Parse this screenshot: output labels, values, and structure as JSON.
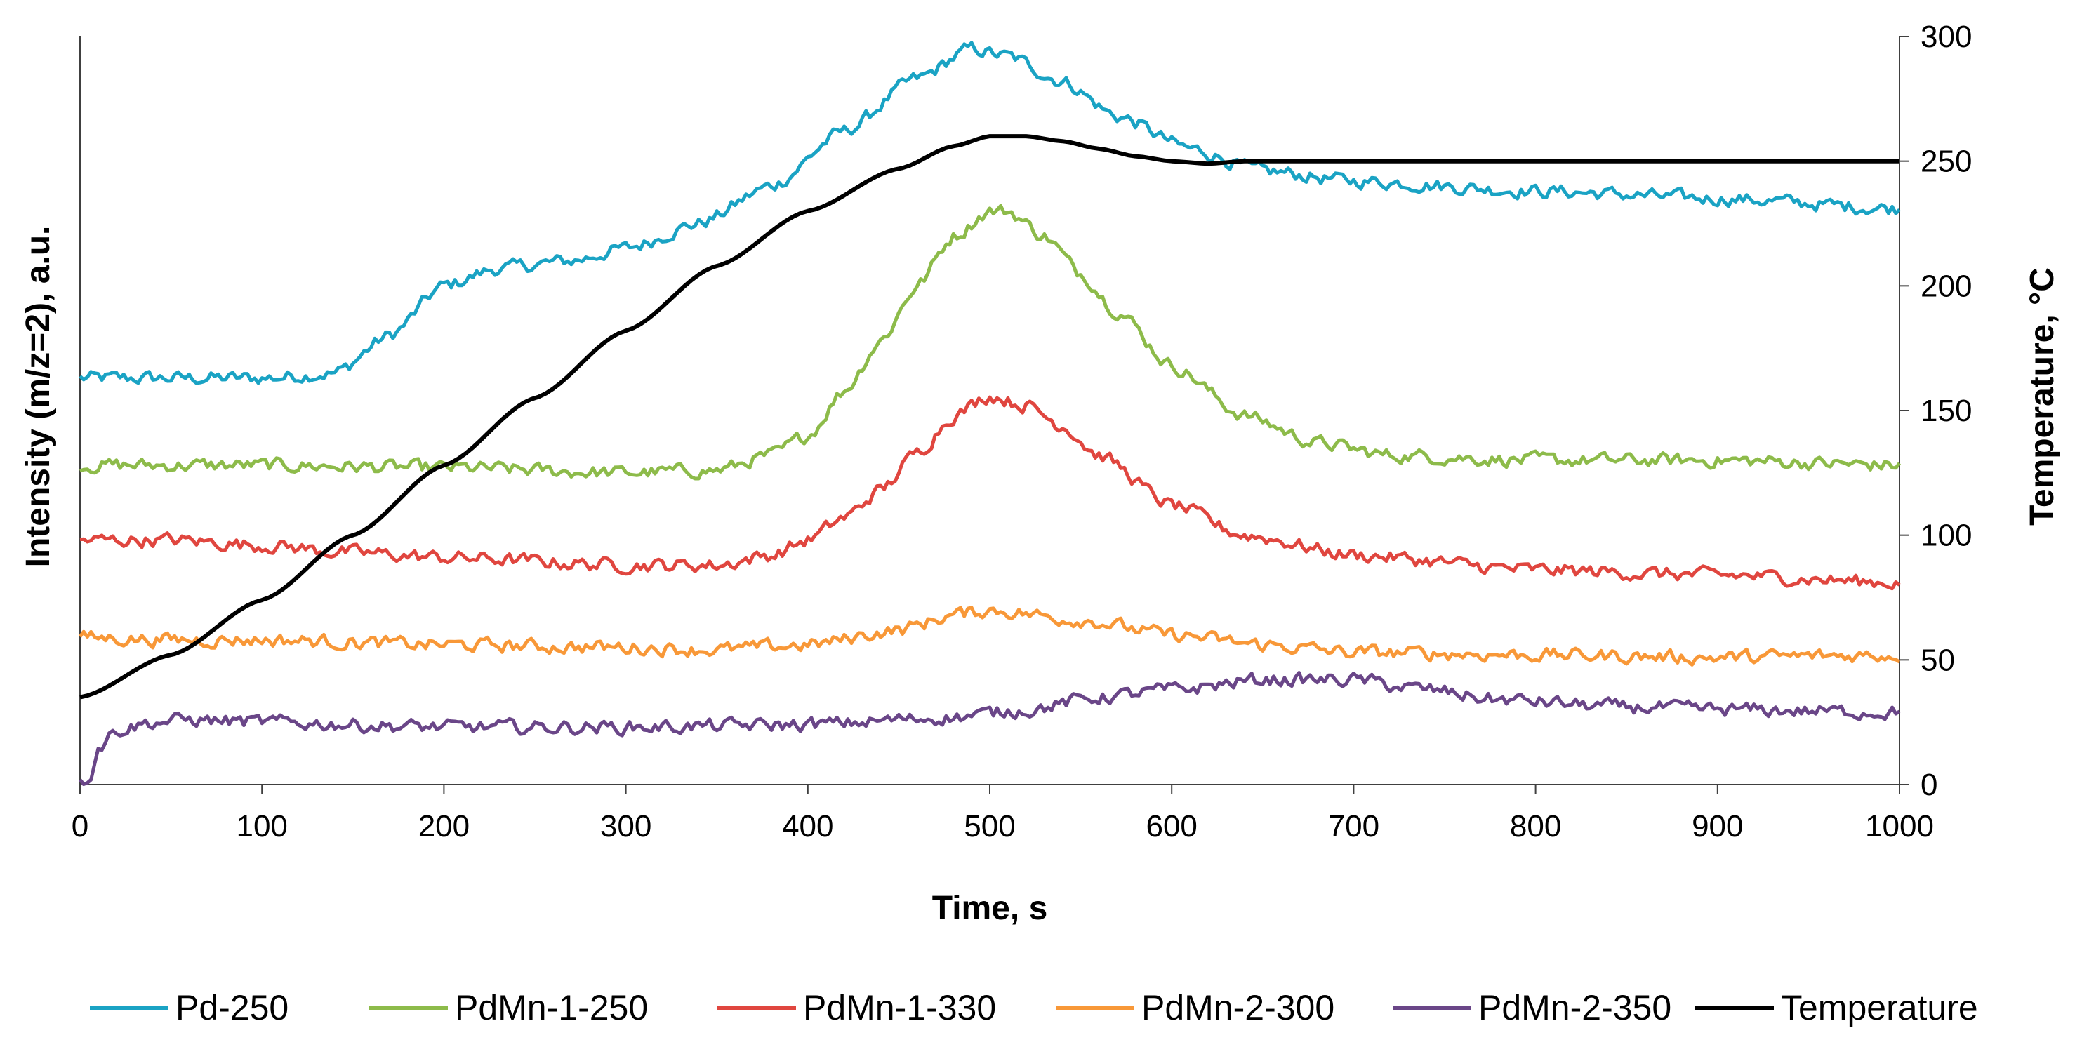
{
  "chart_data": {
    "type": "line",
    "xlabel": "Time, s",
    "ylabel_left": "Intensity (m/z=2), a.u.",
    "ylabel_right": "Temperature, °C",
    "xlim": [
      0,
      1000
    ],
    "ylim_right": [
      0,
      300
    ],
    "x_ticks": [
      0,
      100,
      200,
      300,
      400,
      500,
      600,
      700,
      800,
      900,
      1000
    ],
    "x_tick_labels": [
      "0",
      "100",
      "200",
      "300",
      "400",
      "500",
      "600",
      "700",
      "800",
      "900",
      "1000"
    ],
    "y_right_ticks": [
      0,
      50,
      100,
      150,
      200,
      250,
      300
    ],
    "y_right_tick_labels": [
      "0",
      "50",
      "100",
      "150",
      "200",
      "250",
      "300"
    ],
    "left_axis_has_ticks": false,
    "legend_position": "bottom",
    "noise_amplitude": 3,
    "series": [
      {
        "name": "Pd-250",
        "color": "#1AA3C4",
        "axis": "right",
        "x": [
          0,
          50,
          100,
          140,
          170,
          200,
          230,
          270,
          300,
          340,
          380,
          420,
          460,
          490,
          510,
          540,
          570,
          610,
          650,
          700,
          800,
          900,
          1000
        ],
        "y": [
          163,
          163,
          163,
          165,
          180,
          200,
          207,
          210,
          215,
          225,
          240,
          262,
          283,
          295,
          292,
          282,
          268,
          255,
          246,
          242,
          238,
          235,
          231
        ]
      },
      {
        "name": "PdMn-1-250",
        "color": "#8DBB4A",
        "axis": "right",
        "x": [
          0,
          100,
          200,
          300,
          350,
          380,
          400,
          420,
          440,
          460,
          480,
          500,
          510,
          530,
          550,
          570,
          600,
          640,
          680,
          720,
          800,
          900,
          1000
        ],
        "y": [
          128,
          128,
          127,
          125,
          126,
          132,
          140,
          158,
          178,
          200,
          220,
          230,
          230,
          220,
          205,
          190,
          168,
          148,
          137,
          132,
          130,
          130,
          128
        ]
      },
      {
        "name": "PdMn-1-330",
        "color": "#E0463F",
        "axis": "right",
        "x": [
          0,
          50,
          100,
          150,
          200,
          300,
          350,
          380,
          400,
          420,
          440,
          460,
          480,
          500,
          520,
          540,
          560,
          600,
          640,
          700,
          800,
          900,
          1000
        ],
        "y": [
          98,
          98,
          96,
          93,
          91,
          88,
          88,
          92,
          98,
          107,
          118,
          133,
          148,
          156,
          152,
          144,
          132,
          112,
          100,
          92,
          86,
          84,
          81
        ]
      },
      {
        "name": "PdMn-2-300",
        "color": "#F89838",
        "axis": "right",
        "x": [
          0,
          50,
          100,
          200,
          300,
          350,
          400,
          450,
          480,
          500,
          550,
          600,
          650,
          700,
          800,
          900,
          1000
        ],
        "y": [
          59,
          58,
          58,
          56,
          55,
          54,
          56,
          62,
          68,
          70,
          66,
          60,
          56,
          53,
          52,
          51,
          52
        ]
      },
      {
        "name": "PdMn-2-350",
        "color": "#6A4688",
        "axis": "right",
        "x": [
          0,
          5,
          10,
          20,
          40,
          60,
          100,
          200,
          300,
          400,
          480,
          520,
          560,
          600,
          650,
          700,
          740,
          780,
          850,
          900,
          1000
        ],
        "y": [
          0,
          3,
          15,
          22,
          25,
          26,
          25,
          23,
          23,
          24,
          27,
          30,
          35,
          38,
          42,
          42,
          38,
          34,
          31,
          30,
          29
        ]
      },
      {
        "name": "Temperature",
        "color": "#000000",
        "axis": "right",
        "x": [
          0,
          50,
          100,
          150,
          200,
          250,
          300,
          350,
          400,
          450,
          480,
          500,
          520,
          540,
          560,
          580,
          600,
          620,
          640,
          700,
          800,
          900,
          1000
        ],
        "y": [
          35,
          52,
          74,
          100,
          128,
          155,
          182,
          208,
          230,
          247,
          256,
          260,
          260,
          258,
          255,
          252,
          250,
          249,
          250,
          250,
          250,
          250,
          250
        ]
      }
    ]
  }
}
